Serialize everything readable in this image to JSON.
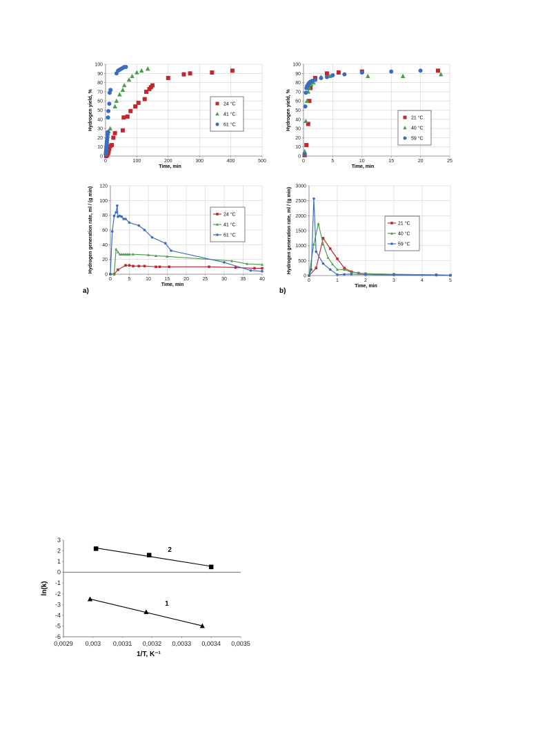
{
  "panel_labels": [
    "a)",
    "b)"
  ],
  "chart_data": [
    {
      "id": "yield_a",
      "type": "scatter",
      "xlabel": "Time, min",
      "ylabel": "Hydrogen yield, %",
      "xlim": [
        0,
        500
      ],
      "xticks": [
        0,
        100,
        200,
        300,
        400,
        500
      ],
      "ylim": [
        0,
        100
      ],
      "yticks": [
        0,
        10,
        20,
        30,
        40,
        50,
        60,
        70,
        80,
        90,
        100
      ],
      "grid": true,
      "legend": "right",
      "series": [
        {
          "name": "24 °C",
          "color": "#c0282d",
          "marker": "square",
          "x": [
            2,
            5,
            8,
            10,
            12,
            15,
            20,
            25,
            30,
            55,
            58,
            70,
            80,
            95,
            105,
            125,
            130,
            140,
            145,
            150,
            200,
            250,
            270,
            340,
            405
          ],
          "y": [
            0,
            1,
            3,
            5,
            8,
            11,
            12,
            20,
            25,
            28,
            42,
            43,
            49,
            54,
            58,
            62,
            70,
            73,
            75,
            77,
            85,
            89,
            90,
            91,
            93
          ]
        },
        {
          "name": "41 °C",
          "color": "#4a9e4a",
          "marker": "triangle",
          "x": [
            1,
            2,
            3,
            4,
            5,
            6,
            7,
            8,
            10,
            15,
            30,
            35,
            45,
            55,
            60,
            75,
            85,
            100,
            115,
            135
          ],
          "y": [
            3,
            6,
            9,
            13,
            16,
            19,
            22,
            25,
            27,
            30,
            54,
            60,
            67,
            72,
            77,
            83,
            87,
            91,
            93,
            95
          ]
        },
        {
          "name": "61 °C",
          "color": "#3a6cc0",
          "marker": "circle",
          "x": [
            0.5,
            1,
            1.5,
            2,
            2.5,
            3,
            3.5,
            4,
            4.5,
            5,
            6,
            7,
            8,
            9,
            12,
            13,
            16,
            35,
            40,
            45,
            50,
            55,
            60,
            65
          ],
          "y": [
            2,
            3,
            5,
            7,
            9,
            11,
            13,
            15,
            17,
            19,
            23,
            26,
            42,
            49,
            57,
            69,
            72,
            90,
            93,
            94,
            95,
            96,
            97,
            97
          ]
        }
      ]
    },
    {
      "id": "yield_b",
      "type": "scatter",
      "xlabel": "Time, min",
      "ylabel": "Hydrogen yield, %",
      "xlim": [
        0,
        25
      ],
      "xticks": [
        0,
        5,
        10,
        15,
        20,
        25
      ],
      "ylim": [
        0,
        100
      ],
      "yticks": [
        0,
        10,
        20,
        30,
        40,
        50,
        60,
        70,
        80,
        90,
        100
      ],
      "grid": true,
      "legend": "bottom-right",
      "series": [
        {
          "name": "21 °C",
          "color": "#c0282d",
          "marker": "square",
          "x": [
            0.2,
            0.5,
            0.8,
            1.0,
            1.2,
            2.0,
            4.0,
            6.0,
            10.0,
            23.0
          ],
          "y": [
            1,
            12,
            35,
            60,
            74,
            85,
            90,
            91,
            92,
            93
          ]
        },
        {
          "name": "40 °C",
          "color": "#4a9e4a",
          "marker": "triangle",
          "x": [
            0.2,
            0.4,
            0.6,
            0.8,
            1.0,
            1.3,
            1.7,
            2.0,
            3.0,
            4.5,
            11.0,
            17.0,
            23.5
          ],
          "y": [
            5,
            38,
            60,
            70,
            74,
            78,
            80,
            83,
            86,
            87,
            87,
            87,
            89
          ]
        },
        {
          "name": "59 °C",
          "color": "#3a6cc0",
          "marker": "circle",
          "x": [
            0.2,
            0.3,
            0.4,
            0.5,
            0.6,
            0.7,
            0.8,
            0.9,
            1.0,
            1.2,
            1.5,
            2.0,
            3.0,
            4.0,
            5.0,
            7.0,
            10.0,
            15.0,
            20.0
          ],
          "y": [
            2,
            54,
            69,
            74,
            76,
            77,
            78,
            79,
            80,
            81,
            82,
            83,
            85,
            86,
            88,
            89,
            91,
            92,
            93
          ]
        }
      ]
    },
    {
      "id": "rate_a",
      "type": "line",
      "xlabel": "Time, min",
      "ylabel": "Hydrogen generation rate, ml / (g min)",
      "xlim": [
        0,
        40
      ],
      "xticks": [
        0,
        5,
        10,
        15,
        20,
        25,
        30,
        35,
        40
      ],
      "ylim": [
        0,
        120
      ],
      "yticks": [
        0,
        20,
        40,
        60,
        80,
        100,
        120
      ],
      "grid": true,
      "legend": "right",
      "series": [
        {
          "name": "24 °C",
          "color": "#c0282d",
          "marker": "square",
          "x": [
            0,
            1,
            2,
            4,
            5,
            6,
            7.5,
            9,
            12,
            13,
            15.5,
            26,
            33,
            38,
            40
          ],
          "y": [
            0,
            0,
            6,
            12,
            12,
            11,
            11,
            11,
            10,
            10,
            10,
            10,
            9,
            8,
            8
          ]
        },
        {
          "name": "41 °C",
          "color": "#4a9e4a",
          "marker": "triangle",
          "x": [
            0,
            1,
            1.5,
            2,
            2.5,
            3,
            3.5,
            4,
            4.5,
            5,
            6,
            10,
            12,
            15,
            32,
            36,
            40
          ],
          "y": [
            0,
            0,
            34,
            30,
            27,
            27,
            27,
            27,
            27,
            27,
            27,
            26,
            25,
            24,
            18,
            14,
            13
          ]
        },
        {
          "name": "61 °C",
          "color": "#3a6cc0",
          "marker": "circle",
          "x": [
            0,
            0.5,
            1,
            1.5,
            1.8,
            2,
            2.5,
            3,
            3.5,
            4,
            5,
            7.5,
            9,
            11,
            14.5,
            16,
            30,
            37,
            40
          ],
          "y": [
            0,
            58,
            79,
            84,
            93,
            78,
            79,
            78,
            75,
            75,
            70,
            66,
            60,
            50,
            42,
            32,
            16,
            5,
            4
          ]
        }
      ]
    },
    {
      "id": "rate_b",
      "type": "line",
      "xlabel": "Time, min",
      "ylabel": "Hydrogen generation rate, ml / (g min)",
      "xlim": [
        0,
        5
      ],
      "xticks": [
        0,
        1,
        2,
        3,
        4,
        5
      ],
      "ylim": [
        0,
        3000
      ],
      "yticks": [
        0,
        500,
        1000,
        1500,
        2000,
        2500,
        3000
      ],
      "grid": true,
      "legend": "right",
      "series": [
        {
          "name": "21 °C",
          "color": "#c0282d",
          "marker": "square",
          "x": [
            0,
            0.25,
            0.5,
            0.75,
            1.0,
            1.25,
            1.5,
            1.75,
            2.0,
            3.0,
            4.5,
            5.0
          ],
          "y": [
            0,
            250,
            1250,
            900,
            560,
            250,
            130,
            80,
            60,
            40,
            25,
            10
          ]
        },
        {
          "name": "40 °C",
          "color": "#4a9e4a",
          "marker": "triangle",
          "x": [
            0,
            0.17,
            0.33,
            0.5,
            0.67,
            0.83,
            1.0,
            1.25,
            1.5,
            1.75,
            2.0,
            3.0,
            4.5,
            5.0
          ],
          "y": [
            0,
            1050,
            1730,
            1050,
            600,
            380,
            200,
            200,
            110,
            90,
            60,
            40,
            20,
            10
          ]
        },
        {
          "name": "59 °C",
          "color": "#3a6cc0",
          "marker": "circle",
          "x": [
            0,
            0.08,
            0.17,
            0.25,
            0.5,
            0.75,
            1.0,
            1.25,
            1.5,
            2.0,
            3.0,
            4.5,
            5.0
          ],
          "y": [
            0,
            200,
            2570,
            800,
            400,
            200,
            30,
            40,
            50,
            30,
            20,
            10,
            5
          ]
        }
      ]
    },
    {
      "id": "arrhenius",
      "type": "scatter",
      "xlabel": "1/T, K⁻¹",
      "ylabel": "ln(k)",
      "xlim": [
        0.0029,
        0.0035
      ],
      "xticks": [
        0.0029,
        0.003,
        0.0031,
        0.0032,
        0.0033,
        0.0034,
        0.0035
      ],
      "xtick_labels": [
        "0,0029",
        "0,003",
        "0,0031",
        "0,0032",
        "0,0033",
        "0,0034",
        "0,0035"
      ],
      "ylim": [
        -6,
        3
      ],
      "yticks": [
        -6,
        -5,
        -4,
        -3,
        -2,
        -1,
        0,
        1,
        2,
        3
      ],
      "grid": false,
      "series": [
        {
          "name": "2",
          "color": "#000000",
          "marker": "square",
          "fit_line": true,
          "x": [
            0.00301,
            0.00319,
            0.0034
          ],
          "y": [
            2.2,
            1.6,
            0.5
          ]
        },
        {
          "name": "1",
          "color": "#000000",
          "marker": "triangle",
          "fit_line": true,
          "x": [
            0.00299,
            0.00318,
            0.00337
          ],
          "y": [
            -2.5,
            -3.7,
            -5.0
          ]
        }
      ]
    }
  ]
}
